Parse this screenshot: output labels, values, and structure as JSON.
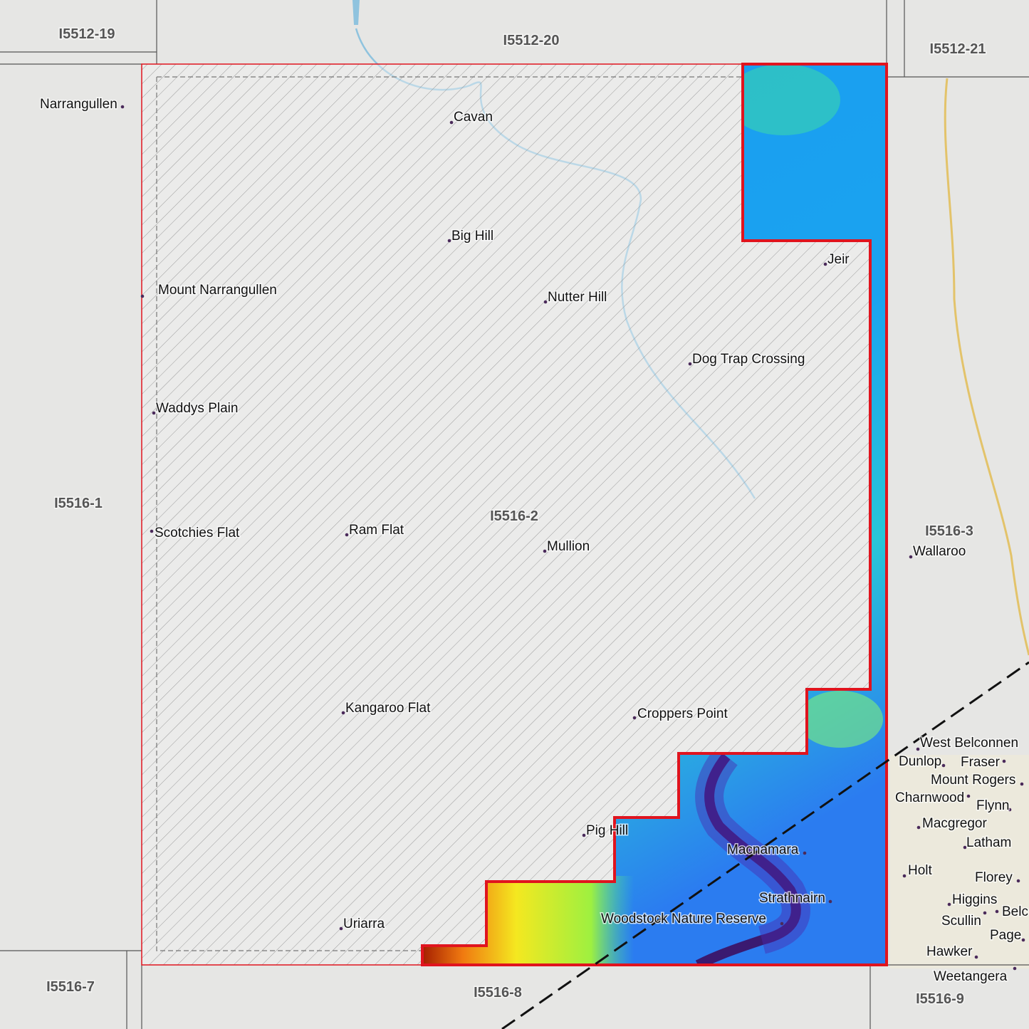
{
  "tiles": [
    {
      "label": "I5512-19"
    },
    {
      "label": "I5512-20"
    },
    {
      "label": "I5512-21"
    },
    {
      "label": "I5516-1"
    },
    {
      "label": "I5516-2"
    },
    {
      "label": "I5516-3"
    },
    {
      "label": "I5516-7"
    },
    {
      "label": "I5516-8"
    },
    {
      "label": "I5516-9"
    }
  ],
  "places": [
    {
      "label": "Narrangullen"
    },
    {
      "label": "Cavan"
    },
    {
      "label": "Big Hill"
    },
    {
      "label": "Mount Narrangullen"
    },
    {
      "label": "Nutter Hill"
    },
    {
      "label": "Jeir"
    },
    {
      "label": "Dog Trap Crossing"
    },
    {
      "label": "Waddys Plain"
    },
    {
      "label": "Scotchies Flat"
    },
    {
      "label": "Ram Flat"
    },
    {
      "label": "Mullion"
    },
    {
      "label": "Wallaroo"
    },
    {
      "label": "Kangaroo Flat"
    },
    {
      "label": "Croppers Point"
    },
    {
      "label": "West Belconnen"
    },
    {
      "label": "Dunlop"
    },
    {
      "label": "Fraser"
    },
    {
      "label": "Mount Rogers"
    },
    {
      "label": "Charnwood"
    },
    {
      "label": "Flynn"
    },
    {
      "label": "Macgregor"
    },
    {
      "label": "Latham"
    },
    {
      "label": "Pig Hill"
    },
    {
      "label": "Macnamara"
    },
    {
      "label": "Holt"
    },
    {
      "label": "Florey"
    },
    {
      "label": "Strathnairn"
    },
    {
      "label": "Higgins"
    },
    {
      "label": "Woodstock Nature Reserve"
    },
    {
      "label": "Belc"
    },
    {
      "label": "Scullin"
    },
    {
      "label": "Page"
    },
    {
      "label": "Uriarra"
    },
    {
      "label": "Hawker"
    },
    {
      "label": "Weetangera"
    }
  ]
}
